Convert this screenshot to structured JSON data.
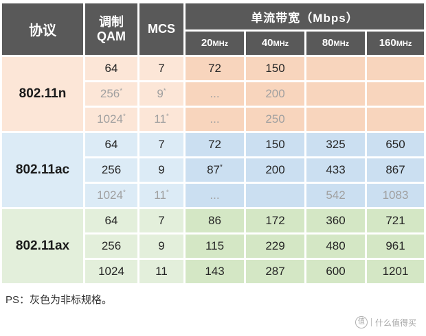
{
  "colors": {
    "header_bg": "#595959",
    "ink": "#262626",
    "gray_text": "#a0a0a0",
    "n_light": "#fce6d7",
    "n_dark": "#f8d5bd",
    "ac_light": "#dcebf6",
    "ac_dark": "#cbdff1",
    "ax_light": "#e3efdb",
    "ax_dark": "#d4e7c5"
  },
  "header": {
    "protocol": "协议",
    "qam": "调制\nQAM",
    "mcs": "MCS",
    "bandwidth_title": "单流带宽（Mbps）",
    "bandwidths": [
      {
        "num": "20",
        "unit": "MHz"
      },
      {
        "num": "40",
        "unit": "MHz"
      },
      {
        "num": "80",
        "unit": "MHz"
      },
      {
        "num": "160",
        "unit": "MHz"
      }
    ]
  },
  "groups": [
    {
      "protocol": "802.11n",
      "theme": "n",
      "rows": [
        {
          "cells": [
            {
              "v": "64"
            },
            {
              "v": "7"
            },
            {
              "v": "72"
            },
            {
              "v": "150"
            },
            {
              "v": ""
            },
            {
              "v": ""
            }
          ]
        },
        {
          "cells": [
            {
              "v": "256",
              "sup": "*",
              "gray": true
            },
            {
              "v": "9",
              "sup": "*",
              "gray": true
            },
            {
              "v": "...",
              "gray": true
            },
            {
              "v": "200",
              "gray": true
            },
            {
              "v": ""
            },
            {
              "v": ""
            }
          ]
        },
        {
          "cells": [
            {
              "v": "1024",
              "sup": "*",
              "gray": true
            },
            {
              "v": "11",
              "sup": "*",
              "gray": true
            },
            {
              "v": "...",
              "gray": true
            },
            {
              "v": "250",
              "gray": true
            },
            {
              "v": ""
            },
            {
              "v": ""
            }
          ]
        }
      ]
    },
    {
      "protocol": "802.11ac",
      "theme": "ac",
      "rows": [
        {
          "cells": [
            {
              "v": "64"
            },
            {
              "v": "7"
            },
            {
              "v": "72"
            },
            {
              "v": "150"
            },
            {
              "v": "325"
            },
            {
              "v": "650"
            }
          ]
        },
        {
          "cells": [
            {
              "v": "256"
            },
            {
              "v": "9"
            },
            {
              "v": "87",
              "sup": "*"
            },
            {
              "v": "200"
            },
            {
              "v": "433"
            },
            {
              "v": "867"
            }
          ]
        },
        {
          "cells": [
            {
              "v": "1024",
              "sup": "*",
              "gray": true
            },
            {
              "v": "11",
              "sup": "*",
              "gray": true
            },
            {
              "v": "...",
              "gray": true
            },
            {
              "v": "",
              "gray": true
            },
            {
              "v": "542",
              "gray": true
            },
            {
              "v": "1083",
              "gray": true
            }
          ]
        }
      ]
    },
    {
      "protocol": "802.11ax",
      "theme": "ax",
      "rows": [
        {
          "cells": [
            {
              "v": "64"
            },
            {
              "v": "7"
            },
            {
              "v": "86"
            },
            {
              "v": "172"
            },
            {
              "v": "360"
            },
            {
              "v": "721"
            }
          ]
        },
        {
          "cells": [
            {
              "v": "256"
            },
            {
              "v": "9"
            },
            {
              "v": "115"
            },
            {
              "v": "229"
            },
            {
              "v": "480"
            },
            {
              "v": "961"
            }
          ]
        },
        {
          "cells": [
            {
              "v": "1024"
            },
            {
              "v": "11"
            },
            {
              "v": "143"
            },
            {
              "v": "287"
            },
            {
              "v": "600"
            },
            {
              "v": "1201"
            }
          ]
        }
      ]
    }
  ],
  "footer": {
    "ps": "PS：灰色为非标规格。",
    "watermark_logo": "值",
    "watermark_text": "什么值得买"
  },
  "chart_data": {
    "type": "table",
    "title": "单流带宽（Mbps）",
    "columns": [
      "协议",
      "调制QAM",
      "MCS",
      "20MHz",
      "40MHz",
      "80MHz",
      "160MHz"
    ],
    "rows": [
      [
        "802.11n",
        "64",
        "7",
        "72",
        "150",
        "",
        ""
      ],
      [
        "802.11n",
        "256*",
        "9*",
        "...",
        "200",
        "",
        ""
      ],
      [
        "802.11n",
        "1024*",
        "11*",
        "...",
        "250",
        "",
        ""
      ],
      [
        "802.11ac",
        "64",
        "7",
        "72",
        "150",
        "325",
        "650"
      ],
      [
        "802.11ac",
        "256",
        "9",
        "87*",
        "200",
        "433",
        "867"
      ],
      [
        "802.11ac",
        "1024*",
        "11*",
        "...",
        "",
        "542",
        "1083"
      ],
      [
        "802.11ax",
        "64",
        "7",
        "86",
        "172",
        "360",
        "721"
      ],
      [
        "802.11ax",
        "256",
        "9",
        "115",
        "229",
        "480",
        "961"
      ],
      [
        "802.11ax",
        "1024",
        "11",
        "143",
        "287",
        "600",
        "1201"
      ]
    ],
    "note": "PS：灰色为非标规格。(gray values = non-standard specifications)"
  }
}
